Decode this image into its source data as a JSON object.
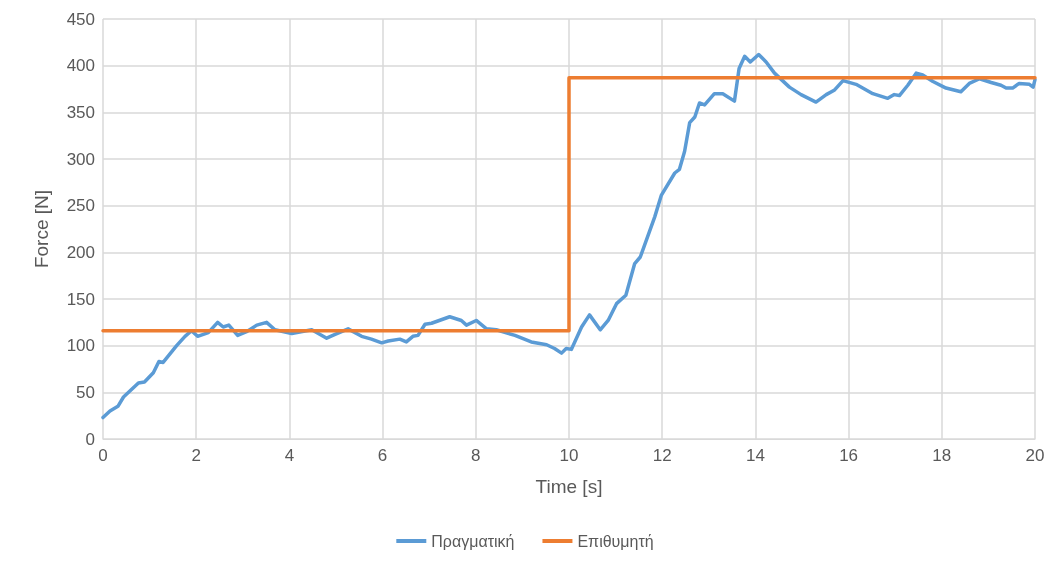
{
  "chart_data": {
    "type": "line",
    "xlabel": "Time [s]",
    "ylabel": "Force [N]",
    "xlim": [
      0,
      20
    ],
    "xticks": [
      0,
      2,
      4,
      6,
      8,
      10,
      12,
      14,
      16,
      18,
      20
    ],
    "ylim": [
      0,
      450
    ],
    "yticks": [
      0,
      50,
      100,
      150,
      200,
      250,
      300,
      350,
      400,
      450
    ],
    "grid": true,
    "legend": "bottom",
    "marker": "none",
    "line_style": "solid",
    "series": [
      {
        "name": "Πραγματική",
        "color": "#5b9bd5",
        "x": [
          0,
          0.15,
          0.32,
          0.44,
          0.76,
          0.89,
          1.08,
          1.2,
          1.29,
          1.58,
          1.76,
          1.9,
          2.03,
          2.26,
          2.46,
          2.58,
          2.7,
          2.89,
          3.08,
          3.3,
          3.51,
          3.69,
          4.05,
          4.48,
          4.8,
          4.98,
          5.26,
          5.55,
          5.76,
          5.98,
          6.12,
          6.37,
          6.51,
          6.65,
          6.76,
          6.91,
          7.05,
          7.44,
          7.69,
          7.8,
          8.01,
          8.23,
          8.44,
          8.84,
          9.19,
          9.52,
          9.69,
          9.84,
          9.94,
          10.05,
          10.27,
          10.44,
          10.67,
          10.84,
          11.02,
          11.22,
          11.41,
          11.53,
          11.84,
          11.98,
          12.27,
          12.37,
          12.48,
          12.59,
          12.7,
          12.8,
          12.91,
          13.12,
          13.3,
          13.55,
          13.65,
          13.77,
          13.89,
          14.07,
          14.23,
          14.41,
          14.73,
          14.98,
          15.3,
          15.52,
          15.7,
          15.88,
          16.16,
          16.52,
          16.84,
          16.98,
          17.09,
          17.27,
          17.45,
          17.59,
          17.81,
          18.09,
          18.41,
          18.59,
          18.81,
          19.06,
          19.27,
          19.38,
          19.52,
          19.66,
          19.88,
          19.96,
          20
        ],
        "values": [
          23,
          30,
          35,
          45,
          60,
          61,
          71,
          83,
          82,
          100,
          110,
          116,
          110,
          114,
          125,
          120,
          122,
          111,
          115,
          122,
          125,
          117,
          113,
          117,
          108,
          112,
          118,
          110,
          107,
          103,
          105,
          107,
          104,
          110,
          111,
          123,
          124,
          131,
          127,
          122,
          127,
          118,
          117,
          111,
          104,
          101,
          97,
          92,
          97,
          96,
          120,
          133,
          117,
          127,
          145,
          154,
          188,
          195,
          238,
          261,
          285,
          289,
          308,
          339,
          345,
          360,
          358,
          370,
          370,
          362,
          397,
          410,
          404,
          412,
          404,
          392,
          377,
          369,
          361,
          369,
          374,
          384,
          380,
          370,
          365,
          369,
          368,
          379,
          392,
          390,
          383,
          376,
          372,
          381,
          386,
          382,
          379,
          376,
          376,
          381,
          380,
          377,
          385
        ]
      },
      {
        "name": "Επιθυμητή",
        "color": "#ed7d31",
        "x": [
          0,
          10,
          10,
          20
        ],
        "values": [
          116,
          116,
          387,
          387
        ]
      }
    ]
  }
}
